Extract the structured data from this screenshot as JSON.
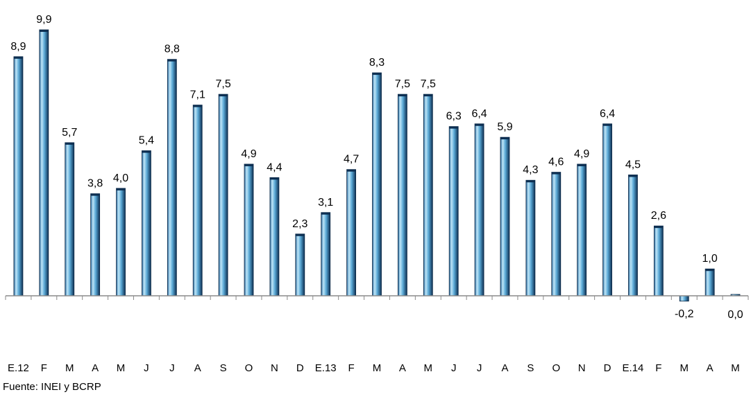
{
  "chart_data": {
    "type": "bar",
    "title": "",
    "xlabel": "",
    "ylabel": "",
    "categories": [
      "E.12",
      "F",
      "M",
      "A",
      "M",
      "J",
      "J",
      "A",
      "S",
      "O",
      "N",
      "D",
      "E.13",
      "F",
      "M",
      "A",
      "M",
      "J",
      "J",
      "A",
      "S",
      "O",
      "N",
      "D",
      "E.14",
      "F",
      "M",
      "A",
      "M"
    ],
    "values": [
      8.9,
      9.9,
      5.7,
      3.8,
      4.0,
      5.4,
      8.8,
      7.1,
      7.5,
      4.9,
      4.4,
      2.3,
      3.1,
      4.7,
      8.3,
      7.5,
      7.5,
      6.3,
      6.4,
      5.9,
      4.3,
      4.6,
      4.9,
      6.4,
      4.5,
      2.6,
      -0.2,
      1.0,
      0.0
    ],
    "value_labels": [
      "8,9",
      "9,9",
      "5,7",
      "3,8",
      "4,0",
      "5,4",
      "8,8",
      "7,1",
      "7,5",
      "4,9",
      "4,4",
      "2,3",
      "3,1",
      "4,7",
      "8,3",
      "7,5",
      "7,5",
      "6,3",
      "6,4",
      "5,9",
      "4,3",
      "4,6",
      "4,9",
      "6,4",
      "4,5",
      "2,6",
      "-0,2",
      "1,0",
      "0,0"
    ],
    "grid": false,
    "legend": "none",
    "colors": {
      "bar_light": "#bfe6f8",
      "bar_mid": "#5aa9d6",
      "bar_dark": "#0d2f52",
      "axis": "#8a8a8a"
    }
  },
  "source": "Fuente: INEI y BCRP"
}
